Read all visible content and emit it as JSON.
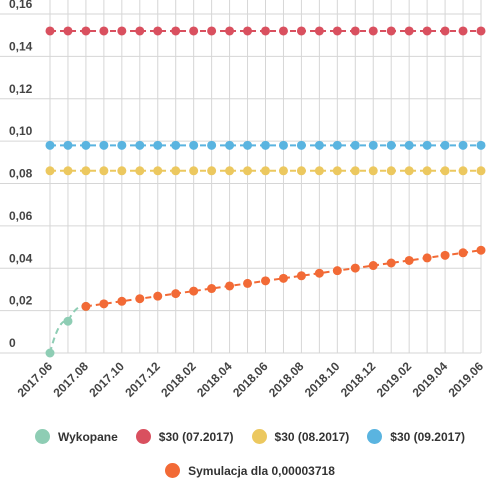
{
  "chart_data": {
    "type": "line",
    "title": "",
    "xlabel": "",
    "ylabel": "",
    "ylim": [
      0,
      0.16
    ],
    "yticks": [
      "0",
      "0,02",
      "0,04",
      "0,06",
      "0,08",
      "0,10",
      "0,12",
      "0,14",
      "0,16"
    ],
    "x_tick_labels": [
      "2017.06",
      "2017.08",
      "2017.10",
      "2017.12",
      "2018.02",
      "2018.04",
      "2018.06",
      "2018.08",
      "2018.10",
      "2018.12",
      "2019.02",
      "2019.04",
      "2019.06"
    ],
    "x_range": [
      "2017-06",
      "2019-06"
    ],
    "grid": true,
    "legend_position": "bottom",
    "series": [
      {
        "name": "Wykopane",
        "color": "#8ecdb4",
        "x": [
          "2017-06",
          "2017-07",
          "2017-08"
        ],
        "values": [
          0,
          0.015,
          0.022
        ]
      },
      {
        "name": "$30 (07.2017)",
        "color": "#d9505f",
        "x": [
          "2017-06",
          "2019-06"
        ],
        "values": [
          0.152,
          0.152
        ]
      },
      {
        "name": "$30 (08.2017)",
        "color": "#ecc85f",
        "x": [
          "2017-06",
          "2019-06"
        ],
        "values": [
          0.086,
          0.086
        ]
      },
      {
        "name": "$30 (09.2017)",
        "color": "#5ab4e0",
        "x": [
          "2017-06",
          "2019-06"
        ],
        "values": [
          0.098,
          0.098
        ]
      },
      {
        "name": "Symulacja dla 0,00003718",
        "color": "#f26a36",
        "x": [
          "2017-08",
          "2019-06"
        ],
        "values": [
          0.022,
          0.0485
        ]
      }
    ]
  }
}
